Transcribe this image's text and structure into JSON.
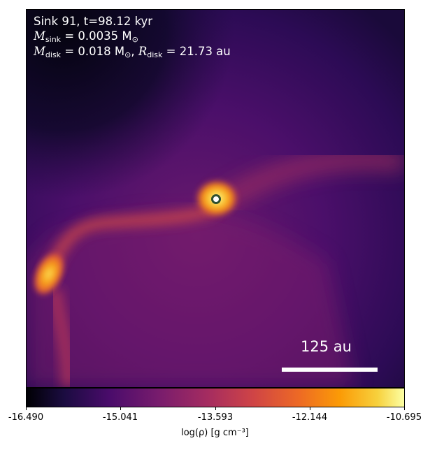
{
  "header": {
    "sink_line": "Sink 91, t=98.12 kyr",
    "msink_label": "M",
    "msink_sub": "sink",
    "msink_value": " = 0.0035 M",
    "msink_unit_sub": "⊙",
    "mdisk_label": "M",
    "mdisk_sub": "disk",
    "mdisk_value": " = 0.018 M",
    "mdisk_unit_sub": "⊙",
    "rdisk_sep": ", ",
    "rdisk_label": "R",
    "rdisk_sub": "disk",
    "rdisk_value": " = 21.73 au"
  },
  "scalebar": {
    "label": "125 au"
  },
  "colorbar": {
    "colormap": "inferno",
    "ticks": [
      "-16.490",
      "-15.041",
      "-13.593",
      "-12.144",
      "-10.695"
    ],
    "label": "log(ρ) [g cm⁻³]"
  },
  "marker": {
    "name": "sink-marker",
    "ring_color": "#2f4f2f",
    "fill_color": "#ffffff"
  }
}
